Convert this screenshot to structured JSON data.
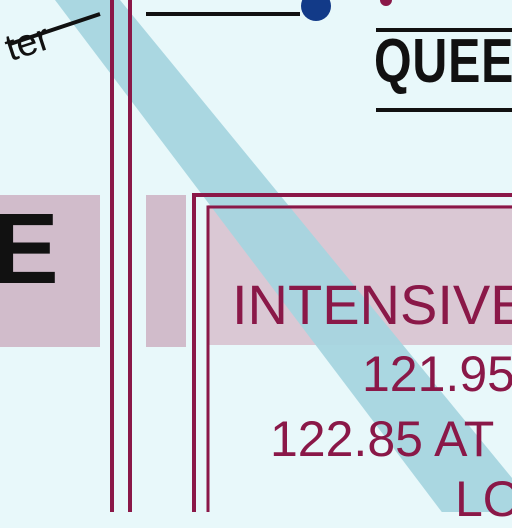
{
  "map": {
    "labels": {
      "top_left_fragment": "ter",
      "top_right_fragment": "QUEE",
      "band_fragment": "E"
    },
    "zone_box": {
      "title": "INTENSIVE",
      "frequency_1": "121.95",
      "frequency_2": "122.85 AT",
      "frequency_3": "LO"
    },
    "colors": {
      "background": "#e8f8fa",
      "boundary": "#8a1848",
      "route": "#a6d5df",
      "band": "#cdb2c2",
      "point": "#123a88"
    },
    "icons": [
      "navaid-dot"
    ]
  }
}
